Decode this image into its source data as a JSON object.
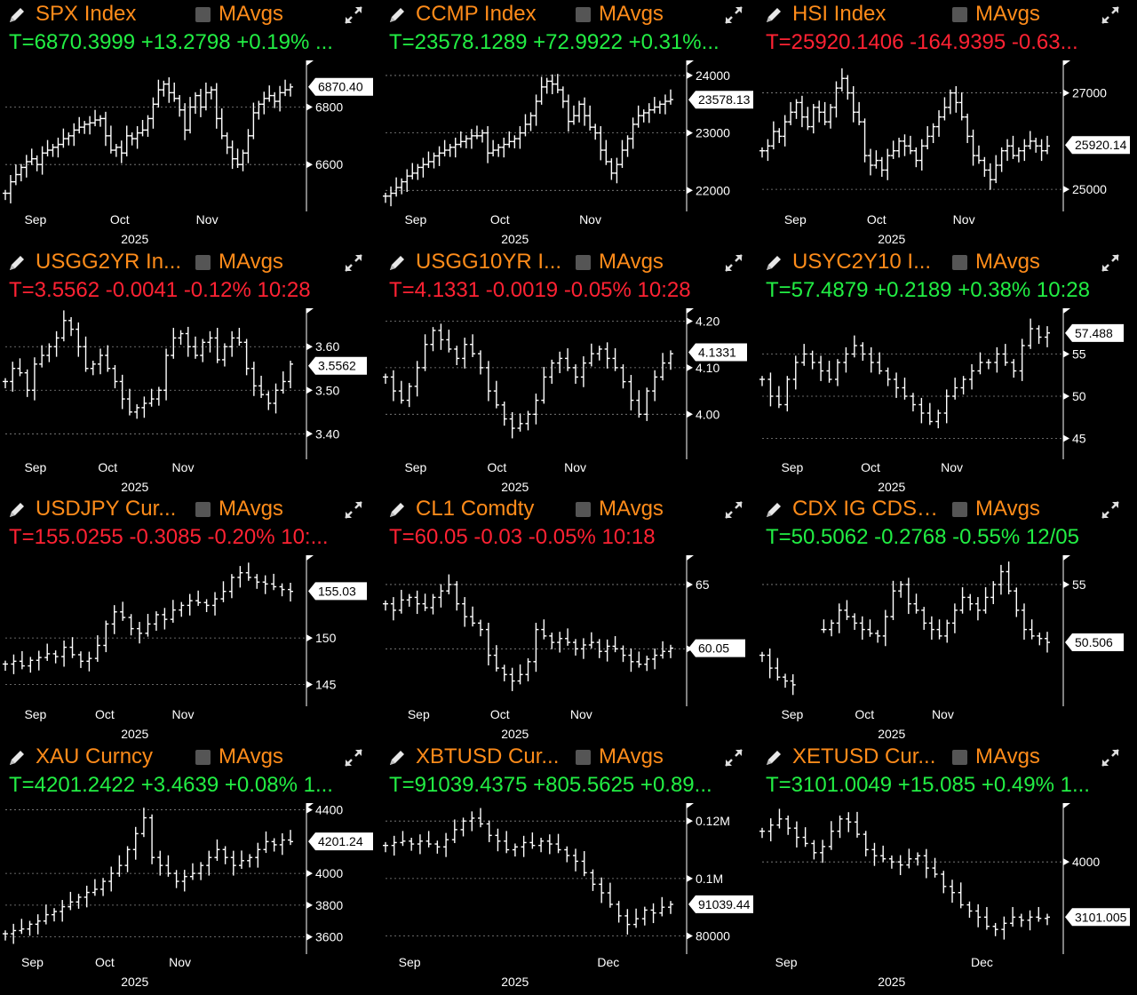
{
  "panels": [
    {
      "ticker": "SPX Index",
      "ma_label": "MAvgs",
      "quote": "T=6870.3999 +13.2798 +0.19% ...",
      "direction": "up",
      "last_label": "6870.40",
      "last_value": 6870.4,
      "yticks": [
        {
          "v": 6800,
          "label": "6800"
        },
        {
          "v": 6600,
          "label": "6600"
        }
      ],
      "ylim": [
        6480,
        6950
      ],
      "xticks": [
        "Sep",
        "Oct",
        "Nov"
      ],
      "xtick_pos": [
        0.1,
        0.38,
        0.67
      ],
      "year": "2025",
      "chart_data": {
        "type": "bar",
        "series": [
          {
            "values": [
              6500,
              6540,
              6565,
              6590,
              6610,
              6620,
              6600,
              6640,
              6650,
              6660,
              6670,
              6690,
              6700,
              6720,
              6730,
              6740,
              6745,
              6755,
              6760,
              6700,
              6650,
              6660,
              6640,
              6700,
              6690,
              6710,
              6720,
              6760,
              6810,
              6860,
              6880,
              6850,
              6830,
              6790,
              6720,
              6800,
              6840,
              6800,
              6850,
              6860,
              6760,
              6700,
              6660,
              6620,
              6600,
              6640,
              6700,
              6780,
              6810,
              6830,
              6840,
              6820,
              6850,
              6860,
              6870
            ]
          }
        ]
      }
    },
    {
      "ticker": "CCMP Index",
      "ma_label": "MAvgs",
      "quote": "T=23578.1289 +72.9922 +0.31%...",
      "direction": "up",
      "last_label": "23578.13",
      "last_value": 23578.13,
      "yticks": [
        {
          "v": 24000,
          "label": "24000"
        },
        {
          "v": 23000,
          "label": "23000"
        },
        {
          "v": 22000,
          "label": "22000"
        }
      ],
      "ylim": [
        21850,
        24200
      ],
      "xticks": [
        "Sep",
        "Oct",
        "Nov"
      ],
      "xtick_pos": [
        0.1,
        0.38,
        0.68
      ],
      "year": "2025",
      "chart_data": {
        "type": "bar",
        "series": [
          {
            "values": [
              21900,
              21950,
              22050,
              22150,
              22250,
              22300,
              22400,
              22450,
              22500,
              22600,
              22650,
              22700,
              22750,
              22800,
              22850,
              22900,
              22950,
              22950,
              23000,
              22650,
              22700,
              22750,
              22800,
              22850,
              22900,
              23000,
              23150,
              23300,
              23550,
              23800,
              23900,
              23850,
              23750,
              23550,
              23200,
              23300,
              23500,
              23300,
              23100,
              23000,
              22700,
              22500,
              22300,
              22450,
              22700,
              22900,
              23150,
              23300,
              23350,
              23400,
              23450,
              23500,
              23550,
              23580
            ]
          }
        ]
      }
    },
    {
      "ticker": "HSI Index",
      "ma_label": "MAvgs",
      "quote": "T=25920.1406 -164.9395 -0.63...",
      "direction": "down",
      "last_label": "25920.14",
      "last_value": 25920.14,
      "yticks": [
        {
          "v": 27000,
          "label": "27000"
        },
        {
          "v": 25000,
          "label": "25000"
        }
      ],
      "ylim": [
        24800,
        27600
      ],
      "xticks": [
        "Sep",
        "Oct",
        "Nov"
      ],
      "xtick_pos": [
        0.11,
        0.38,
        0.67
      ],
      "year": "2025",
      "chart_data": {
        "type": "bar",
        "series": [
          {
            "values": [
              25800,
              25900,
              26200,
              26100,
              26400,
              26600,
              26800,
              26500,
              26300,
              26700,
              26600,
              26400,
              26700,
              27100,
              27300,
              27000,
              26600,
              26400,
              25700,
              25500,
              25600,
              25400,
              25700,
              25800,
              26000,
              25900,
              25800,
              25600,
              25900,
              26100,
              26300,
              26500,
              26700,
              27000,
              26800,
              26500,
              26100,
              25700,
              25600,
              25400,
              25200,
              25500,
              25800,
              25900,
              25700,
              25800,
              25900,
              26000,
              25900,
              25800,
              25900
            ]
          }
        ]
      }
    },
    {
      "ticker": "USGG2YR In...",
      "ma_label": "MAvgs",
      "quote": "T=3.5562 -0.0041 -0.12% 10:28",
      "direction": "down",
      "last_label": "3.5562",
      "last_value": 3.5562,
      "yticks": [
        {
          "v": 3.6,
          "label": "3.60"
        },
        {
          "v": 3.5,
          "label": "3.50"
        },
        {
          "v": 3.4,
          "label": "3.40"
        }
      ],
      "ylim": [
        3.37,
        3.68
      ],
      "xticks": [
        "Sep",
        "Oct",
        "Nov"
      ],
      "xtick_pos": [
        0.1,
        0.34,
        0.59
      ],
      "year": "2025",
      "chart_data": {
        "type": "bar",
        "series": [
          {
            "values": [
              3.52,
              3.55,
              3.54,
              3.5,
              3.56,
              3.58,
              3.6,
              3.62,
              3.66,
              3.64,
              3.6,
              3.55,
              3.56,
              3.58,
              3.55,
              3.52,
              3.48,
              3.45,
              3.46,
              3.47,
              3.48,
              3.5,
              3.58,
              3.62,
              3.63,
              3.6,
              3.58,
              3.61,
              3.62,
              3.57,
              3.6,
              3.62,
              3.61,
              3.55,
              3.51,
              3.49,
              3.47,
              3.5,
              3.52,
              3.56
            ]
          }
        ]
      }
    },
    {
      "ticker": "USGG10YR I...",
      "ma_label": "MAvgs",
      "quote": "T=4.1331 -0.0019 -0.05% 10:28",
      "direction": "down",
      "last_label": "4.1331",
      "last_value": 4.1331,
      "yticks": [
        {
          "v": 4.2,
          "label": "4.20"
        },
        {
          "v": 4.1,
          "label": "4.10"
        },
        {
          "v": 4.0,
          "label": "4.00"
        }
      ],
      "ylim": [
        3.93,
        4.22
      ],
      "xticks": [
        "Sep",
        "Oct",
        "Nov"
      ],
      "xtick_pos": [
        0.1,
        0.37,
        0.63
      ],
      "year": "2025",
      "chart_data": {
        "type": "bar",
        "series": [
          {
            "values": [
              4.08,
              4.05,
              4.03,
              4.06,
              4.1,
              4.15,
              4.18,
              4.16,
              4.14,
              4.12,
              4.15,
              4.13,
              4.1,
              4.05,
              4.02,
              3.99,
              3.97,
              3.98,
              4.0,
              4.03,
              4.08,
              4.11,
              4.12,
              4.1,
              4.08,
              4.11,
              4.13,
              4.14,
              4.12,
              4.1,
              4.07,
              4.03,
              4.0,
              4.05,
              4.08,
              4.11,
              4.13
            ]
          }
        ]
      }
    },
    {
      "ticker": "USYC2Y10 I...",
      "ma_label": "MAvgs",
      "quote": "T=57.4879 +0.2189 +0.38% 10:28",
      "direction": "up",
      "last_label": "57.488",
      "last_value": 57.488,
      "yticks": [
        {
          "v": 55,
          "label": "55"
        },
        {
          "v": 50,
          "label": "50"
        },
        {
          "v": 45,
          "label": "45"
        }
      ],
      "ylim": [
        44,
        60
      ],
      "xticks": [
        "Sep",
        "Oct",
        "Nov"
      ],
      "xtick_pos": [
        0.1,
        0.36,
        0.63
      ],
      "year": "2025",
      "chart_data": {
        "type": "bar",
        "series": [
          {
            "values": [
              52,
              50,
              49,
              52,
              54,
              55,
              54,
              53,
              52,
              54,
              55,
              56,
              55,
              54,
              53,
              52,
              51,
              50,
              49,
              48,
              47,
              48,
              50,
              51,
              52,
              53,
              54,
              54,
              55,
              54,
              53,
              56,
              58,
              57,
              57.5
            ]
          }
        ]
      }
    },
    {
      "ticker": "USDJPY Cur...",
      "ma_label": "MAvgs",
      "quote": "T=155.0255 -0.3085 -0.20% 10:...",
      "direction": "down",
      "last_label": "155.03",
      "last_value": 155.03,
      "yticks": [
        {
          "v": 150,
          "label": "150"
        },
        {
          "v": 145,
          "label": "145"
        }
      ],
      "ylim": [
        144,
        158.5
      ],
      "xticks": [
        "Sep",
        "Oct",
        "Nov"
      ],
      "xtick_pos": [
        0.1,
        0.33,
        0.59
      ],
      "year": "2025",
      "chart_data": {
        "type": "bar",
        "series": [
          {
            "values": [
              147.2,
              147.5,
              147.0,
              147.6,
              147.9,
              148.3,
              148.0,
              149.0,
              148.2,
              147.5,
              147.8,
              149.2,
              151.5,
              152.8,
              152.2,
              151.0,
              150.5,
              151.5,
              152.5,
              152.0,
              153.0,
              153.5,
              154.0,
              153.8,
              153.5,
              154.2,
              155.0,
              156.5,
              157.0,
              156.5,
              156.0,
              155.8,
              155.5,
              155.2,
              155.0
            ]
          }
        ]
      }
    },
    {
      "ticker": "CL1 Comdty",
      "ma_label": "MAvgs",
      "quote": "T=60.05 -0.03 -0.05% 10:18",
      "direction": "down",
      "last_label": "60.05",
      "last_value": 60.05,
      "yticks": [
        {
          "v": 65,
          "label": "65"
        },
        {
          "v": 60,
          "label": "60"
        }
      ],
      "ylim": [
        56.5,
        67
      ],
      "xticks": [
        "Sep",
        "Oct",
        "Nov"
      ],
      "xtick_pos": [
        0.11,
        0.38,
        0.65
      ],
      "year": "2025",
      "chart_data": {
        "type": "bar",
        "series": [
          {
            "values": [
              63.5,
              63.0,
              63.8,
              64.0,
              63.5,
              63.2,
              64.0,
              64.5,
              65.0,
              63.5,
              62.5,
              62.0,
              61.5,
              59.5,
              58.5,
              58.0,
              57.5,
              58.0,
              59.0,
              61.5,
              61.0,
              60.5,
              60.8,
              60.5,
              60.0,
              60.3,
              60.5,
              59.8,
              60.2,
              60.0,
              59.5,
              59.0,
              58.8,
              59.2,
              59.5,
              59.8,
              60.05
            ]
          }
        ]
      }
    },
    {
      "ticker": "CDX IG CDSI...",
      "ma_label": "MAvgs",
      "quote": "T=50.5062 -0.2768 -0.55% 12/05",
      "direction": "up",
      "last_label": "50.506",
      "last_value": 50.506,
      "yticks": [
        {
          "v": 55,
          "label": "55"
        }
      ],
      "ylim": [
        46.5,
        57
      ],
      "xticks": [
        "Sep",
        "Oct",
        "Nov"
      ],
      "xtick_pos": [
        0.1,
        0.34,
        0.6
      ],
      "year": "2025",
      "chart_data": {
        "type": "bar",
        "series": [
          {
            "values": [
              49.5,
              48.5,
              47.8,
              47.5,
              47.2,
              null,
              null,
              null,
              51.5,
              52.0,
              53.0,
              52.5,
              52.0,
              51.5,
              51.2,
              51.0,
              52.5,
              54.5,
              55.0,
              53.5,
              53.0,
              52.0,
              51.5,
              51.0,
              52.0,
              53.0,
              54.0,
              53.5,
              53.0,
              54.0,
              55.0,
              56.0,
              54.5,
              53.0,
              51.5,
              51.0,
              50.8,
              50.5
            ]
          }
        ]
      }
    },
    {
      "ticker": "XAU Curncy",
      "ma_label": "MAvgs",
      "quote": "T=4201.2422 +3.4639 +0.08% 1...",
      "direction": "up",
      "last_label": "4201.24",
      "last_value": 4201.24,
      "yticks": [
        {
          "v": 4400,
          "label": "4400"
        },
        {
          "v": 4000,
          "label": "4000"
        },
        {
          "v": 3800,
          "label": "3800"
        },
        {
          "v": 3600,
          "label": "3600"
        }
      ],
      "ylim": [
        3570,
        4420
      ],
      "xticks": [
        "Sep",
        "Oct",
        "Nov"
      ],
      "xtick_pos": [
        0.09,
        0.33,
        0.58
      ],
      "year": "2025",
      "chart_data": {
        "type": "bar",
        "series": [
          {
            "values": [
              3620,
              3640,
              3650,
              3680,
              3700,
              3740,
              3760,
              3790,
              3820,
              3850,
              3880,
              3900,
              3950,
              4000,
              4050,
              4150,
              4250,
              4350,
              4100,
              4050,
              4000,
              3950,
              3980,
              4000,
              4050,
              4100,
              4150,
              4100,
              4050,
              4080,
              4100,
              4150,
              4200,
              4180,
              4210,
              4200
            ]
          }
        ]
      }
    },
    {
      "ticker": "XBTUSD Cur...",
      "ma_label": "MAvgs",
      "quote": "T=91039.4375 +805.5625 +0.89...",
      "direction": "up",
      "last_label": "91039.44",
      "last_value": 91039.44,
      "yticks": [
        {
          "v": 120000,
          "label": "0.12M"
        },
        {
          "v": 100000,
          "label": "0.1M"
        },
        {
          "v": 80000,
          "label": "80000"
        }
      ],
      "ylim": [
        78000,
        125000
      ],
      "xticks": [
        "Sep",
        "Dec"
      ],
      "xtick_pos": [
        0.08,
        0.74
      ],
      "year": "2025",
      "chart_data": {
        "type": "bar",
        "series": [
          {
            "values": [
              111500,
              112500,
              113000,
              112000,
              113000,
              112000,
              111000,
              113500,
              117000,
              120000,
              121000,
              119000,
              115000,
              113000,
              110000,
              111000,
              112500,
              111500,
              113000,
              112000,
              110000,
              108000,
              106000,
              102000,
              98000,
              95000,
              91000,
              87000,
              84000,
              86000,
              89000,
              88000,
              90000,
              91000
            ]
          }
        ]
      }
    },
    {
      "ticker": "XETUSD Cur...",
      "ma_label": "MAvgs",
      "quote": "T=3101.0049 +15.085 +0.49% 1...",
      "direction": "up",
      "last_label": "3101.005",
      "last_value": 3101.005,
      "yticks": [
        {
          "v": 4000,
          "label": "4000"
        }
      ],
      "ylim": [
        2700,
        4900
      ],
      "xticks": [
        "Sep",
        "Dec"
      ],
      "xtick_pos": [
        0.08,
        0.73
      ],
      "year": "2025",
      "chart_data": {
        "type": "bar",
        "series": [
          {
            "values": [
              4500,
              4600,
              4700,
              4550,
              4400,
              4300,
              4150,
              4250,
              4500,
              4700,
              4650,
              4450,
              4200,
              4100,
              4050,
              4000,
              3950,
              4050,
              4100,
              3900,
              3800,
              3600,
              3500,
              3300,
              3200,
              3100,
              2950,
              2900,
              3000,
              3100,
              3050,
              3100,
              3080,
              3100
            ]
          }
        ]
      }
    }
  ]
}
